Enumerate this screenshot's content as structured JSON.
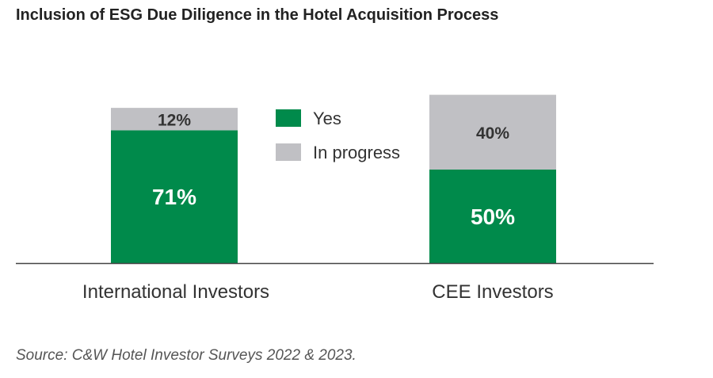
{
  "chart_data": {
    "type": "bar",
    "stacked": true,
    "title": "Inclusion of ESG Due Diligence in the Hotel Acquisition Process",
    "categories": [
      "International Investors",
      "CEE Investors"
    ],
    "series": [
      {
        "name": "Yes",
        "values": [
          71,
          50
        ],
        "color": "#008a4b",
        "label_color": "#ffffff"
      },
      {
        "name": "In progress",
        "values": [
          12,
          40
        ],
        "color": "#c0c0c4",
        "label_color": "#333333"
      }
    ],
    "value_suffix": "%",
    "ylim": [
      0,
      100
    ],
    "grid": false,
    "legend_position": "center-top",
    "source": "Source: C&W Hotel Investor Surveys 2022 & 2023."
  }
}
